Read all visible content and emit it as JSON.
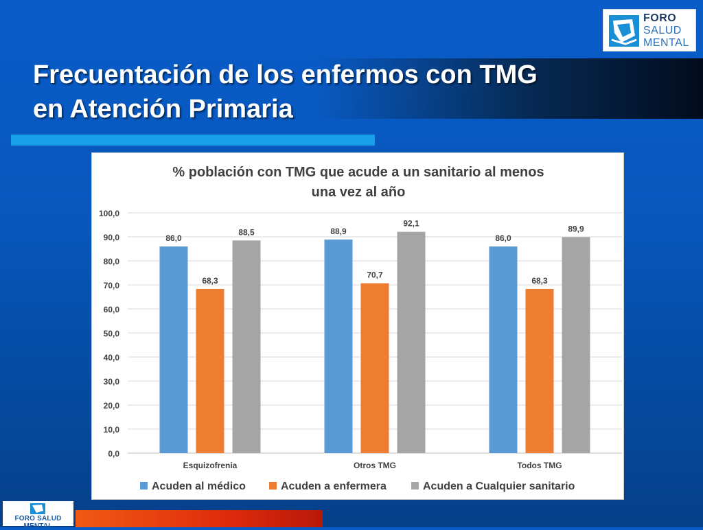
{
  "slide": {
    "title_line1": "Frecuentación de los enfermos con TMG",
    "title_line2": "en Atención Primaria"
  },
  "logo": {
    "line1": "FORO",
    "line2": "SALUD",
    "line3": "MENTAL",
    "footer_text": "FORO SALUD MENTAL",
    "icon": "foro-salud-mental-logo-icon"
  },
  "colors": {
    "series1": "#5b9bd5",
    "series2": "#ed7d31",
    "series3": "#a5a5a5",
    "title_underline": "#1aa0e8",
    "footer_bar": "#e8400f"
  },
  "chart_data": {
    "type": "bar",
    "title_line1": "% población con TMG que acude a un sanitario al menos",
    "title_line2": "una vez al año",
    "categories": [
      "Esquizofrenia",
      "Otros TMG",
      "Todos TMG"
    ],
    "series": [
      {
        "name": "Acuden al médico",
        "values": [
          86.0,
          88.9,
          86.0
        ],
        "labels": [
          "86,0",
          "88,9",
          "86,0"
        ]
      },
      {
        "name": "Acuden a enfermera",
        "values": [
          68.3,
          70.7,
          68.3
        ],
        "labels": [
          "68,3",
          "70,7",
          "68,3"
        ]
      },
      {
        "name": "Acuden a Cualquier sanitario",
        "values": [
          88.5,
          92.1,
          89.9
        ],
        "labels": [
          "88,5",
          "92,1",
          "89,9"
        ]
      }
    ],
    "ylim": [
      0,
      100
    ],
    "yticks": [
      0,
      10,
      20,
      30,
      40,
      50,
      60,
      70,
      80,
      90,
      100
    ],
    "ytick_labels": [
      "0,0",
      "10,0",
      "20,0",
      "30,0",
      "40,0",
      "50,0",
      "60,0",
      "70,0",
      "80,0",
      "90,0",
      "100,0"
    ],
    "grid": true,
    "legend_position": "bottom"
  }
}
